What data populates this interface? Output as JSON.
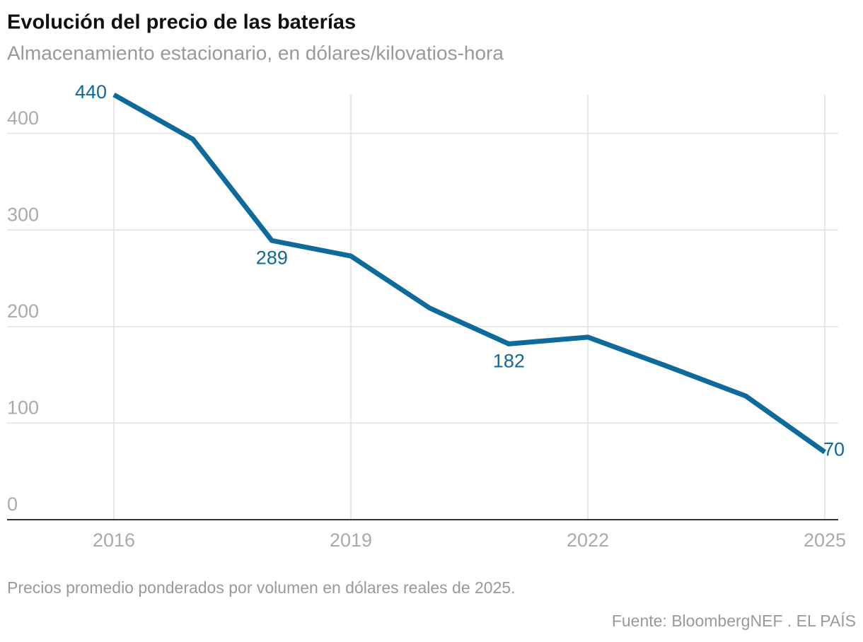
{
  "chart_data": {
    "type": "line",
    "title": "Evolución del precio de las baterías",
    "subtitle": "Almacenamiento estacionario, en dólares/kilovatios-hora",
    "x": [
      2016,
      2017,
      2018,
      2019,
      2020,
      2021,
      2022,
      2023,
      2024,
      2025
    ],
    "series": [
      {
        "name": "Precio",
        "color": "#0e6a9a",
        "values": [
          440,
          394,
          289,
          273,
          219,
          182,
          189,
          159,
          128,
          70
        ],
        "value_labels": [
          "440",
          null,
          "289",
          null,
          null,
          "182",
          null,
          null,
          null,
          "70"
        ]
      }
    ],
    "xlim": [
      2016,
      2025
    ],
    "xticks": [
      2016,
      2019,
      2022,
      2025
    ],
    "ylim": [
      0,
      440
    ],
    "yticks": [
      0,
      100,
      200,
      300,
      400
    ],
    "grid": true,
    "note": "Precios promedio ponderados por volumen en dólares reales de 2025.",
    "source": "Fuente: BloombergNEF . EL PAÍS"
  }
}
